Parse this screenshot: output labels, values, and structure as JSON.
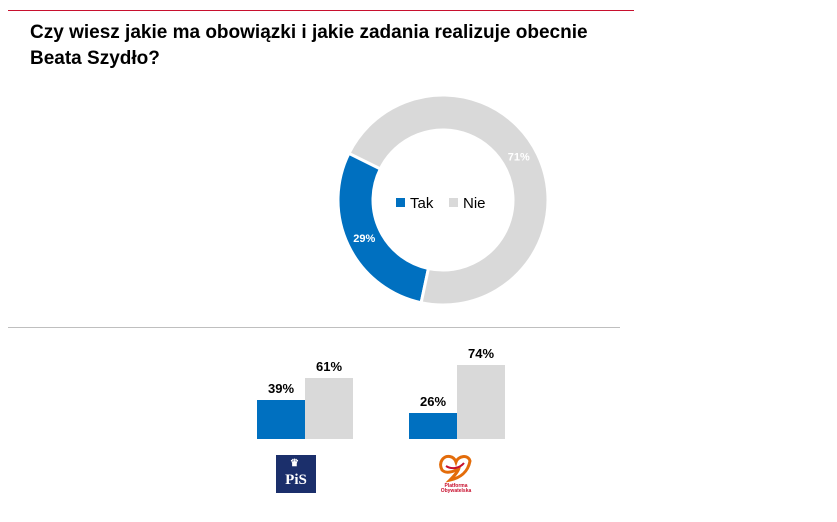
{
  "title_lines": [
    "Czy wiesz jakie ma obowiązki i jakie zadania realizuje obecnie",
    "Beata Szydło?"
  ],
  "colors": {
    "tak": "#0070c0",
    "nie": "#d9d9d9",
    "rule": "#c8102e"
  },
  "chart_data": [
    {
      "type": "pie",
      "style": "donut",
      "slices": [
        {
          "label": "Tak",
          "value": 29,
          "display": "29%"
        },
        {
          "label": "Nie",
          "value": 71,
          "display": "71%"
        }
      ],
      "legend": [
        "Tak",
        "Nie"
      ],
      "legend_position": "center"
    },
    {
      "type": "bar",
      "categories": [
        "PiS",
        "Platforma Obywatelska"
      ],
      "series": [
        {
          "name": "Tak",
          "values": [
            39,
            26
          ]
        },
        {
          "name": "Nie",
          "values": [
            61,
            74
          ]
        }
      ],
      "value_labels": [
        [
          "39%",
          "26%"
        ],
        [
          "61%",
          "74%"
        ]
      ]
    }
  ],
  "logos": {
    "pis_text": "PiS",
    "po_text": "Platforma Obywatelska"
  }
}
